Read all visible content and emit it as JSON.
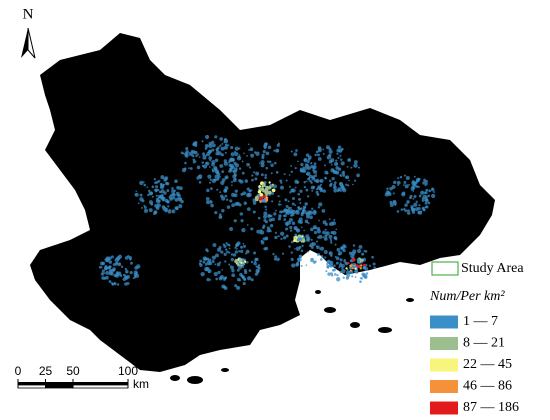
{
  "north_label": "N",
  "scale_bar": {
    "ticks": [
      0,
      25,
      50,
      100
    ],
    "unit": "km"
  },
  "legend": {
    "study_area": "Study Area",
    "title": "Num/Per km²",
    "items": [
      {
        "label": "1 — 7",
        "color": "#3a8fc8"
      },
      {
        "label": "8 — 21",
        "color": "#9dbf8f"
      },
      {
        "label": "22 — 45",
        "color": "#f7f57c"
      },
      {
        "label": "46 — 86",
        "color": "#f5913a"
      },
      {
        "label": "87 — 186",
        "color": "#e31a1c"
      }
    ]
  }
}
